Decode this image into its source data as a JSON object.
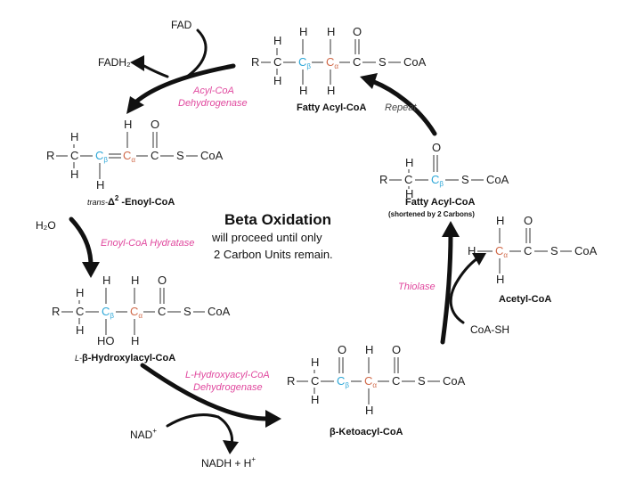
{
  "title": "Beta Oxidation",
  "subtitle_line1": "will proceed until only",
  "subtitle_line2": "2 Carbon Units remain.",
  "molecules": {
    "fatty_acyl_coa": "Fatty Acyl-CoA",
    "enoyl_coa_prefix": "trans-",
    "enoyl_coa_delta": "Δ",
    "enoyl_coa_sup": "2",
    "enoyl_coa_suffix": " -Enoyl-CoA",
    "hydroxyacyl_prefix": "L-",
    "hydroxyacyl_suffix": "β-Hydroxylacyl-CoA",
    "ketoacyl_coa": "β-Ketoacyl-CoA",
    "shortened_fatty_acyl": "Fatty Acyl-CoA",
    "shortened_note": "(shortened by 2 Carbons)",
    "acetyl_coa": "Acetyl-CoA"
  },
  "enzymes": {
    "dehydrogenase_line1": "Acyl-CoA",
    "dehydrogenase_line2": "Dehydrogenase",
    "hydratase": "Enoyl-CoA Hydratase",
    "hydroxyacyl_line1": "L-Hydroxyacyl-CoA",
    "hydroxyacyl_line2": "Dehydrogenase",
    "thiolase": "Thiolase"
  },
  "cofactors": {
    "fad": "FAD",
    "fadh2": "FADH₂",
    "h2o": "H₂O",
    "nad": "NAD",
    "nad_sup": "+",
    "nadh": "NADH + H",
    "nadh_sup": "+",
    "coash": "CoA-SH"
  },
  "repeat": "Repeat",
  "atoms": {
    "r": "R",
    "c": "C",
    "h": "H",
    "o": "O",
    "ho": "HO",
    "s": "S",
    "coa": "CoA",
    "beta": "β",
    "alpha": "α"
  },
  "colors": {
    "enzyme": "#e0489e",
    "beta_carbon": "#2fa8d8",
    "alpha_carbon": "#d06a4a",
    "arrow": "#111111"
  }
}
